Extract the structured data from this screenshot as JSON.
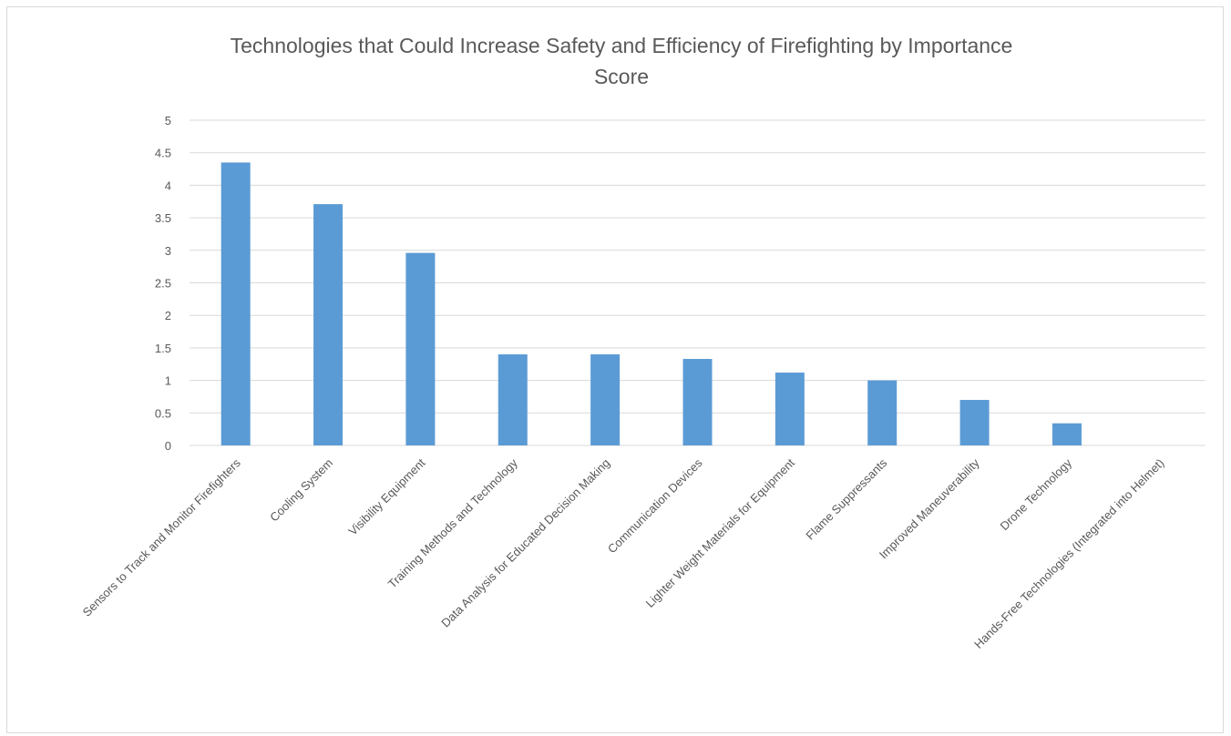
{
  "chart_data": {
    "type": "bar",
    "title": "Technologies that Could Increase Safety and Efficiency of Firefighting by Importance Score",
    "title_lines": [
      "Technologies that Could Increase Safety and Efficiency of Firefighting by Importance",
      "Score"
    ],
    "xlabel": "",
    "ylabel": "",
    "categories": [
      "Sensors to Track and Monitor Firefighters",
      "Cooling System",
      "Visibility Equipment",
      "Training Methods and Technology",
      "Data Analysis for Educated Decision Making",
      "Communication Devices",
      "Lighter Weight Materials for Equipment",
      "Flame Suppressants",
      "Improved Maneuverability",
      "Drone Technology",
      "Hands-Free Technologies (Integrated into Helmet)"
    ],
    "values": [
      4.35,
      3.71,
      2.96,
      1.4,
      1.4,
      1.33,
      1.12,
      1.0,
      0.7,
      0.34,
      0
    ],
    "y_ticks": [
      "0",
      "0.5",
      "1",
      "1.5",
      "2",
      "2.5",
      "3",
      "3.5",
      "4",
      "4.5",
      "5"
    ],
    "ylim": [
      0,
      5
    ],
    "grid": true,
    "legend": "none",
    "bar_color": "#5b9bd5",
    "grid_color": "#d9d9d9",
    "text_color": "#595959"
  }
}
